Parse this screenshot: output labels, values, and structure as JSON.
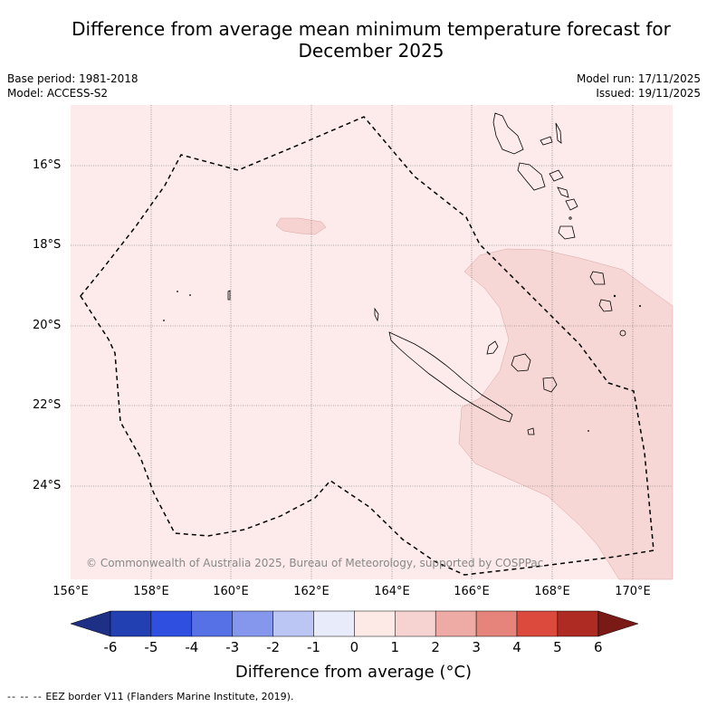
{
  "title": "Difference from average mean minimum temperature forecast for December 2025",
  "base_period": "Base period: 1981-2018",
  "model": "Model: ACCESS-S2",
  "model_run": "Model run: 17/11/2025",
  "issued": "Issued: 19/11/2025",
  "copyright": "© Commonwealth of Australia 2025, Bureau of Meteorology, supported by COSPPac",
  "lat_labels": [
    "16°S",
    "18°S",
    "20°S",
    "22°S",
    "24°S"
  ],
  "lon_labels": [
    "156°E",
    "158°E",
    "160°E",
    "162°E",
    "164°E",
    "166°E",
    "168°E",
    "170°E"
  ],
  "colorbar": {
    "ticks": [
      "-6",
      "-5",
      "-4",
      "-3",
      "-2",
      "-1",
      "0",
      "1",
      "2",
      "3",
      "4",
      "5",
      "6"
    ],
    "colors": [
      "#1e2f86",
      "#2340b3",
      "#2e4fdf",
      "#5670e6",
      "#8597ec",
      "#bcc6f4",
      "#e8ebfa",
      "#fdeae6",
      "#f6d3d1",
      "#eeaaa4",
      "#e6847b",
      "#dc4a3e",
      "#ae2b24",
      "#7a1a16"
    ],
    "label": "Difference from average (°C)"
  },
  "legend": {
    "symbol": "-- -- --",
    "text": "EEZ border V11 (Flanders Marine Institute, 2019)."
  },
  "map": {
    "background_color": "#fcebea",
    "anomaly_color": "#f6d7d6",
    "lon_min": 156,
    "lon_max": 171,
    "lat_top": -14.5,
    "lat_bottom": -26.3
  }
}
